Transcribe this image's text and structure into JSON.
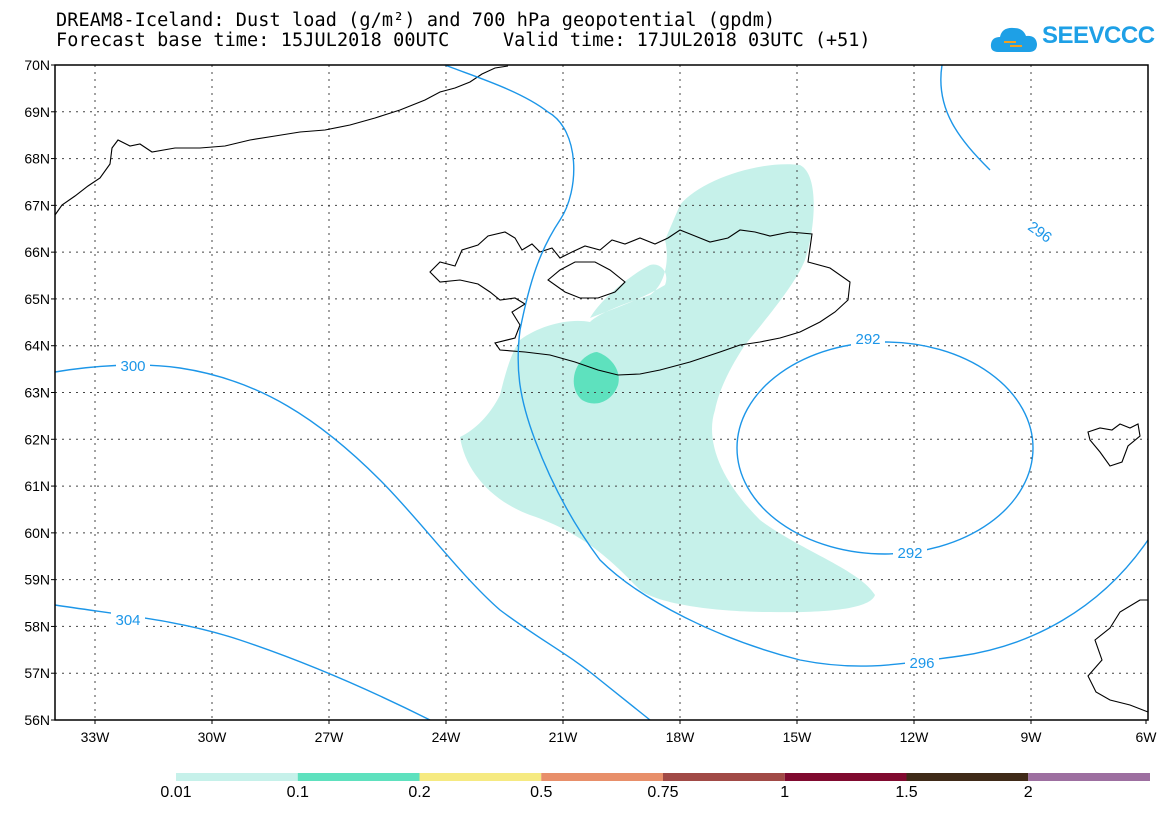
{
  "header": {
    "title_line1": "DREAM8-Iceland: Dust load (g/m²) and 700 hPa geopotential (gpdm)",
    "title_line2": "Forecast base time: 15JUL2018 00UTC",
    "valid_time": "Valid time: 17JUL2018 03UTC (+51)"
  },
  "logo": {
    "text": "SEEVCCC",
    "icon": "cloud-icon",
    "color": "#1ea0e6"
  },
  "axes": {
    "lat_labels": [
      "70N",
      "69N",
      "68N",
      "67N",
      "66N",
      "65N",
      "64N",
      "63N",
      "62N",
      "61N",
      "60N",
      "59N",
      "58N",
      "57N",
      "56N"
    ],
    "lon_labels": [
      "33W",
      "30W",
      "27W",
      "24W",
      "21W",
      "18W",
      "15W",
      "12W",
      "9W",
      "6W"
    ]
  },
  "contours": {
    "color": "#1c96e8",
    "labels": [
      "300",
      "304",
      "296",
      "292",
      "292",
      "296"
    ]
  },
  "colorbar": {
    "colors": [
      "#c6f1ea",
      "#5ee1be",
      "#f6ea81",
      "#e88f6a",
      "#a14a46",
      "#800a2f",
      "#3f2a18",
      "#9d6fa0"
    ],
    "labels": [
      "0.01",
      "0.1",
      "0.2",
      "0.5",
      "0.75",
      "1",
      "1.5",
      "2"
    ]
  }
}
